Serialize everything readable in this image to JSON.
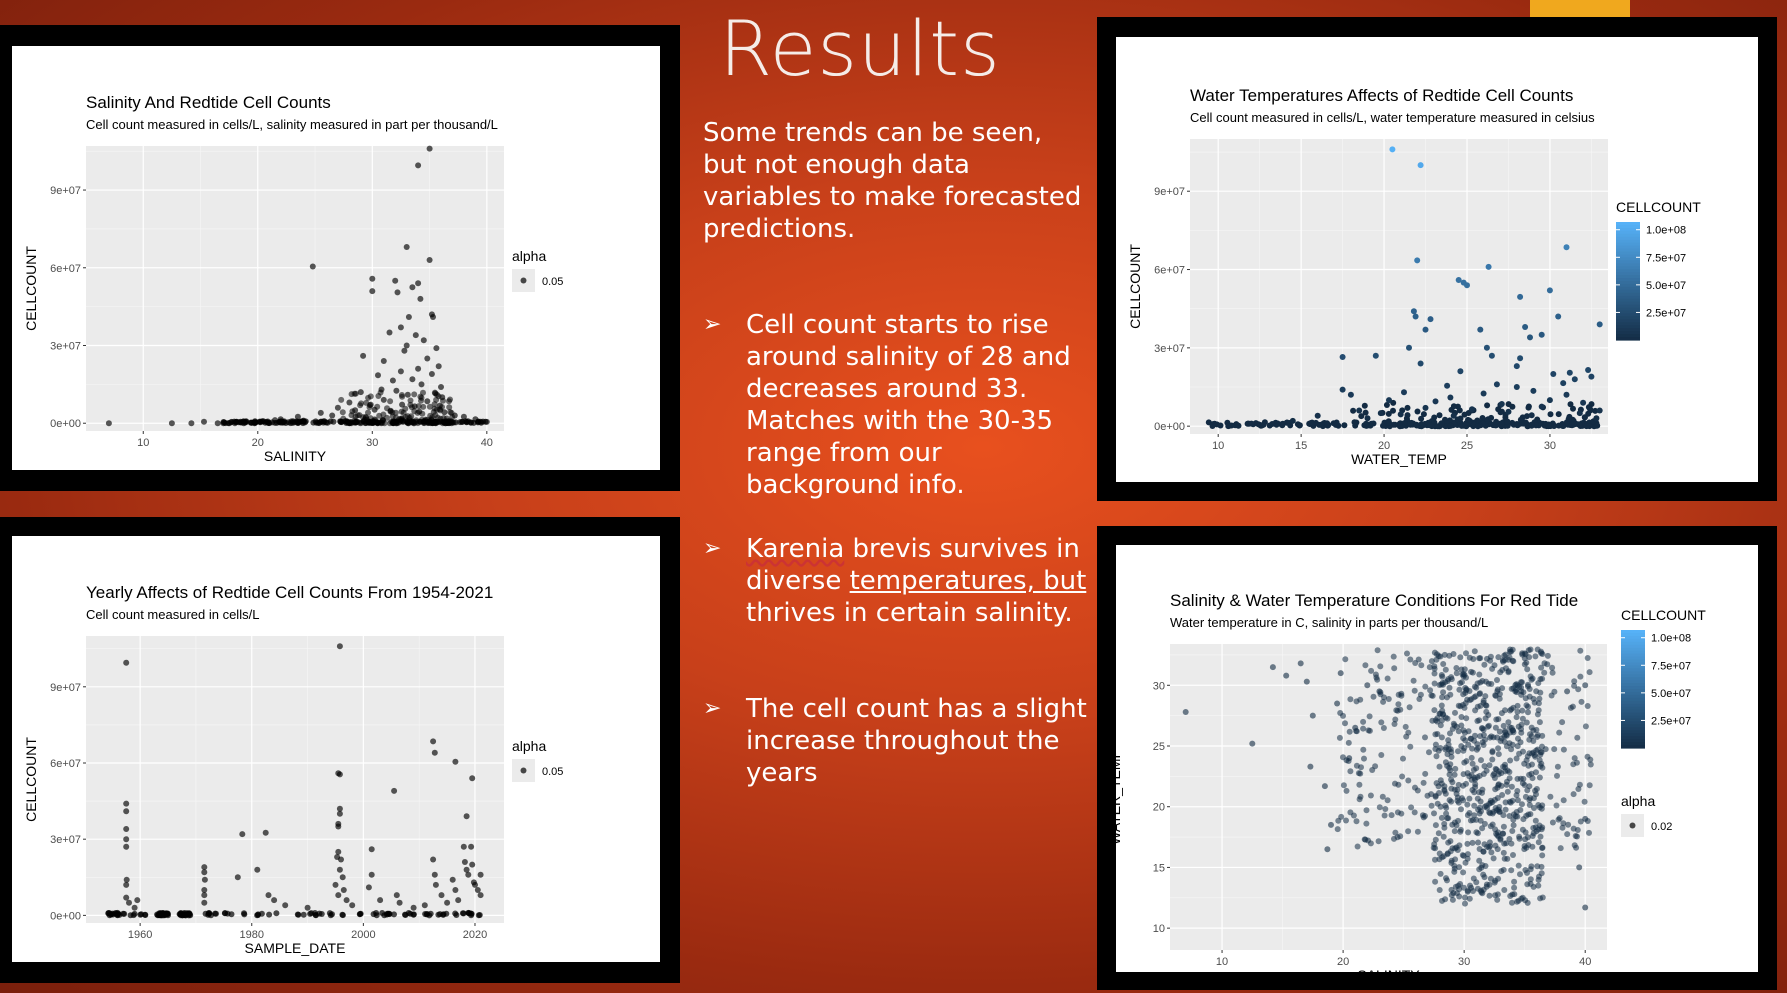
{
  "slide": {
    "title": "Results",
    "intro": "Some trends can be seen, but not enough data variables to make forecasted predictions.",
    "bullets": [
      {
        "icon": "arrow-bullet-icon",
        "glyph": "➢",
        "text": "Cell count starts to rise around salinity of 28 and decreases around 33. Matches with the 30-35 range from our background info."
      },
      {
        "icon": "arrow-bullet-icon",
        "glyph": "➢",
        "pre": " ",
        "w1": "Karenia",
        "mid": " brevis survives in diverse ",
        "w2": "temperatures, but",
        "post": " thrives in certain salinity."
      },
      {
        "icon": "arrow-bullet-icon",
        "glyph": "➢",
        "text": "The cell count has a slight increase throughout the years"
      }
    ],
    "colors": {
      "background": "#c8401a",
      "accent": "#f0a81e",
      "point_dark": "#132b43",
      "point_light": "#56b1f7",
      "panel_bg": "#ebebeb"
    }
  },
  "chart_data": [
    {
      "type": "scatter",
      "title": "Salinity And Redtide Cell Counts",
      "subtitle": "Cell count measured in cells/L, salinity measured in part per thousand/L",
      "xlabel": "SALINITY",
      "ylabel": "CELLCOUNT",
      "xlim": [
        5,
        41.5
      ],
      "ylim": [
        -3000000,
        107000000
      ],
      "xticks": [
        10,
        20,
        30,
        40
      ],
      "xtick_labels": [
        "10",
        "20",
        "30",
        "40"
      ],
      "yticks": [
        0,
        30000000,
        60000000,
        90000000
      ],
      "ytick_labels": [
        "0e+00",
        "3e+07",
        "6e+07",
        "9e+07"
      ],
      "legend": {
        "title": "alpha",
        "labels": [
          "0.05"
        ],
        "position": "right"
      },
      "grid": true,
      "points": [
        [
          7,
          0
        ],
        [
          12.5,
          0
        ],
        [
          14.2,
          0
        ],
        [
          15.3,
          600000
        ],
        [
          16.5,
          0
        ],
        [
          17,
          0
        ],
        [
          17.5,
          0
        ],
        [
          18,
          0
        ],
        [
          24.8,
          60500000
        ],
        [
          30,
          55800000
        ],
        [
          30,
          51000000
        ],
        [
          31.5,
          35000000
        ],
        [
          32,
          55000000
        ],
        [
          32.2,
          50500000
        ],
        [
          32.5,
          37000000
        ],
        [
          33,
          68000000
        ],
        [
          33.2,
          41000000
        ],
        [
          33.5,
          52500000
        ],
        [
          34,
          54000000
        ],
        [
          34,
          99500000
        ],
        [
          34.2,
          48000000
        ],
        [
          35,
          63000000
        ],
        [
          35,
          106000000
        ],
        [
          35.2,
          42000000
        ],
        [
          35.3,
          41000000
        ],
        [
          33.8,
          34000000
        ],
        [
          34.5,
          32000000
        ],
        [
          35.6,
          29000000
        ],
        [
          33,
          30000000
        ],
        [
          32.8,
          28000000
        ],
        [
          29.2,
          26000000
        ],
        [
          31,
          24000000
        ],
        [
          34.8,
          25000000
        ],
        [
          35.8,
          22000000
        ],
        [
          34,
          21000000
        ],
        [
          32.5,
          20000000
        ],
        [
          30.5,
          18500000
        ],
        [
          33.5,
          17000000
        ],
        [
          31.8,
          16500000
        ],
        [
          35.2,
          19000000
        ],
        [
          34.3,
          15000000
        ],
        [
          36,
          14000000
        ],
        [
          29,
          12000000
        ],
        [
          30.8,
          13000000
        ],
        [
          32.1,
          12500000
        ],
        [
          33.1,
          11000000
        ],
        [
          35.5,
          11500000
        ],
        [
          36.1,
          10000000
        ],
        [
          28,
          8000000
        ],
        [
          31,
          9000000
        ],
        [
          34.8,
          8500000
        ],
        [
          27,
          6000000
        ],
        [
          29.8,
          7000000
        ],
        [
          32.6,
          7200000
        ],
        [
          33.7,
          6500000
        ],
        [
          35.9,
          6800000
        ],
        [
          25.5,
          4000000
        ],
        [
          28.5,
          5000000
        ],
        [
          30.2,
          5200000
        ],
        [
          31.6,
          4800000
        ],
        [
          34.1,
          4500000
        ],
        [
          36.3,
          4200000
        ],
        [
          38,
          2500000
        ],
        [
          39,
          1500000
        ],
        [
          40,
          500000
        ],
        [
          22,
          1500000
        ],
        [
          23.5,
          2500000
        ],
        [
          26.5,
          3000000
        ],
        [
          24,
          1000000
        ],
        [
          20.5,
          800000
        ],
        [
          21.5,
          1200000
        ],
        [
          19,
          500000
        ],
        [
          18.5,
          600000
        ],
        [
          37.2,
          3000000
        ]
      ],
      "base_band": [
        [
          17,
          40
        ],
        [
          0,
          800000
        ]
      ],
      "dense_region": [
        [
          27,
          37
        ],
        [
          0,
          12000000
        ]
      ]
    },
    {
      "type": "scatter",
      "title": "Water Temperatures Affects of Redtide Cell Counts",
      "subtitle": "Cell count measured in cells/L, water temperature measured in celsius",
      "xlabel": "WATER_TEMP",
      "ylabel": "CELLCOUNT",
      "xlim": [
        8.3,
        33.5
      ],
      "ylim": [
        -3000000,
        110000000
      ],
      "xticks": [
        10,
        15,
        20,
        25,
        30
      ],
      "xtick_labels": [
        "10",
        "15",
        "20",
        "25",
        "30"
      ],
      "yticks": [
        0,
        30000000,
        60000000,
        90000000
      ],
      "ytick_labels": [
        "0e+00",
        "3e+07",
        "6e+07",
        "9e+07"
      ],
      "legend": {
        "title": "CELLCOUNT",
        "labels": [
          "1.0e+08",
          "7.5e+07",
          "5.0e+07",
          "2.5e+07"
        ],
        "ticks": [
          100000000,
          75000000,
          50000000,
          25000000
        ],
        "range": [
          0,
          107000000
        ],
        "position": "right"
      },
      "grid": true,
      "points": [
        [
          20.5,
          106000000
        ],
        [
          22.2,
          100000000
        ],
        [
          22,
          63500000
        ],
        [
          24.5,
          56000000
        ],
        [
          24.8,
          55000000
        ],
        [
          25,
          54000000
        ],
        [
          26.3,
          61000000
        ],
        [
          28.2,
          49500000
        ],
        [
          30,
          52000000
        ],
        [
          31,
          68500000
        ],
        [
          30.5,
          42000000
        ],
        [
          33,
          39000000
        ],
        [
          21.8,
          44000000
        ],
        [
          21.9,
          42000000
        ],
        [
          22.5,
          37000000
        ],
        [
          22.8,
          41000000
        ],
        [
          25.8,
          37000000
        ],
        [
          26.2,
          30000000
        ],
        [
          26.5,
          27000000
        ],
        [
          28.5,
          38000000
        ],
        [
          28.8,
          34000000
        ],
        [
          29.5,
          35000000
        ],
        [
          17.5,
          26500000
        ],
        [
          19.5,
          27000000
        ],
        [
          21.5,
          30000000
        ],
        [
          22.2,
          24000000
        ],
        [
          24.6,
          21000000
        ],
        [
          28,
          23000000
        ],
        [
          28.2,
          26000000
        ],
        [
          30.2,
          20000000
        ],
        [
          31.2,
          20500000
        ],
        [
          31.5,
          18000000
        ],
        [
          32.3,
          21500000
        ],
        [
          32.5,
          19000000
        ],
        [
          17.5,
          14000000
        ],
        [
          18,
          12000000
        ],
        [
          20.3,
          10000000
        ],
        [
          21.2,
          13000000
        ],
        [
          23.1,
          9500000
        ],
        [
          24,
          11000000
        ],
        [
          26,
          12500000
        ],
        [
          27.1,
          8500000
        ],
        [
          28,
          15000000
        ],
        [
          29,
          13500000
        ],
        [
          30,
          10000000
        ],
        [
          31,
          12000000
        ],
        [
          32,
          9000000
        ],
        [
          33,
          6000000
        ],
        [
          16,
          4000000
        ],
        [
          18.5,
          6000000
        ],
        [
          19.8,
          5000000
        ],
        [
          22.5,
          7000000
        ],
        [
          25.3,
          6500000
        ],
        [
          27.5,
          5500000
        ],
        [
          29.5,
          7500000
        ],
        [
          31.8,
          5000000
        ],
        [
          14.5,
          2000000
        ],
        [
          12,
          1000000
        ],
        [
          26.8,
          16000000
        ],
        [
          30.8,
          16500000
        ],
        [
          23.8,
          15500000
        ],
        [
          19,
          3000000
        ],
        [
          21,
          4500000
        ],
        [
          24.2,
          4000000
        ],
        [
          28.9,
          4200000
        ],
        [
          32.8,
          3000000
        ]
      ],
      "base_band": [
        [
          9.2,
          33
        ],
        [
          0,
          1500000
        ]
      ],
      "dense_region": [
        [
          18,
          33
        ],
        [
          0,
          9000000
        ]
      ]
    },
    {
      "type": "scatter",
      "title": "Yearly Affects of Redtide Cell Counts From 1954-2021",
      "subtitle": "Cell count measured in cells/L",
      "xlabel": "SAMPLE_DATE",
      "ylabel": "CELLCOUNT",
      "xlim": [
        1950.3,
        2025.2
      ],
      "ylim": [
        -3000000,
        110000000
      ],
      "xticks": [
        1960,
        1980,
        2000,
        2020
      ],
      "xtick_labels": [
        "1960",
        "1980",
        "2000",
        "2020"
      ],
      "yticks": [
        0,
        30000000,
        60000000,
        90000000
      ],
      "ytick_labels": [
        "0e+00",
        "3e+07",
        "6e+07",
        "9e+07"
      ],
      "legend": {
        "title": "alpha",
        "labels": [
          "0.05"
        ],
        "position": "right"
      },
      "grid": true,
      "points": [
        [
          1957.5,
          99500000
        ],
        [
          1957.5,
          44000000
        ],
        [
          1957.5,
          41000000
        ],
        [
          1957.5,
          34000000
        ],
        [
          1957.5,
          30000000
        ],
        [
          1957.5,
          27000000
        ],
        [
          1957.6,
          14000000
        ],
        [
          1957.5,
          12000000
        ],
        [
          1957.5,
          7000000
        ],
        [
          1958,
          5000000
        ],
        [
          1959.5,
          6000000
        ],
        [
          1959,
          3000000
        ],
        [
          1971.5,
          19000000
        ],
        [
          1971.5,
          17000000
        ],
        [
          1971.6,
          14000000
        ],
        [
          1971.5,
          10000000
        ],
        [
          1971.5,
          8000000
        ],
        [
          1971.5,
          5000000
        ],
        [
          1978.3,
          32000000
        ],
        [
          1977.5,
          15000000
        ],
        [
          1981,
          18000000
        ],
        [
          1982.5,
          32500000
        ],
        [
          1983,
          8000000
        ],
        [
          1984,
          6000000
        ],
        [
          1986,
          4000000
        ],
        [
          1990,
          3000000
        ],
        [
          1995.8,
          106000000
        ],
        [
          1995.5,
          56000000
        ],
        [
          1995.8,
          55500000
        ],
        [
          1995.8,
          42000000
        ],
        [
          1995.8,
          40000000
        ],
        [
          1995.5,
          36000000
        ],
        [
          1995.5,
          35000000
        ],
        [
          1995.5,
          25000000
        ],
        [
          1995.3,
          23000000
        ],
        [
          1996,
          22000000
        ],
        [
          1995.8,
          18000000
        ],
        [
          1996.3,
          15000000
        ],
        [
          1995,
          12000000
        ],
        [
          1996.5,
          10000000
        ],
        [
          1995.5,
          8000000
        ],
        [
          1997,
          6000000
        ],
        [
          1998,
          4000000
        ],
        [
          2001.5,
          26000000
        ],
        [
          2001.5,
          16000000
        ],
        [
          2001,
          11000000
        ],
        [
          2003,
          6000000
        ],
        [
          2005.5,
          49000000
        ],
        [
          2006,
          8000000
        ],
        [
          2006.5,
          5000000
        ],
        [
          2009,
          3000000
        ],
        [
          2012.5,
          68500000
        ],
        [
          2012.8,
          64000000
        ],
        [
          2012.5,
          22000000
        ],
        [
          2012.8,
          16000000
        ],
        [
          2013,
          12000000
        ],
        [
          2014,
          8000000
        ],
        [
          2016.5,
          60500000
        ],
        [
          2016,
          14000000
        ],
        [
          2016.5,
          10000000
        ],
        [
          2018.5,
          39000000
        ],
        [
          2018,
          27000000
        ],
        [
          2018.2,
          21000000
        ],
        [
          2018.5,
          18000000
        ],
        [
          2018.8,
          16000000
        ],
        [
          2019.5,
          54000000
        ],
        [
          2019.3,
          27000000
        ],
        [
          2019.5,
          20000000
        ],
        [
          2019.8,
          13000000
        ],
        [
          2020,
          12000000
        ],
        [
          2020.5,
          10000000
        ],
        [
          2021,
          16000000
        ],
        [
          2021,
          8000000
        ],
        [
          2017,
          6000000
        ],
        [
          2015,
          5000000
        ],
        [
          2011,
          4000000
        ]
      ],
      "date_clusters": [
        [
          1954,
          1962
        ],
        [
          1963,
          1965
        ],
        [
          1967,
          1969
        ],
        [
          1971,
          1993
        ],
        [
          1994,
          2010
        ],
        [
          2011,
          2021.5
        ]
      ],
      "base_band": [
        [
          1954,
          2021.5
        ],
        [
          0,
          1000000
        ]
      ]
    },
    {
      "type": "scatter",
      "title": "Salinity & Water Temperature Conditions For Red Tide",
      "subtitle": "Water temperature in C, salinity in parts per thousand/L",
      "xlabel": "SALINITY",
      "ylabel": "WATER_TEMP",
      "xlim": [
        5.7,
        41.8
      ],
      "ylim": [
        8.2,
        33.4
      ],
      "xticks": [
        10,
        20,
        30,
        40
      ],
      "xtick_labels": [
        "10",
        "20",
        "30",
        "40"
      ],
      "yticks": [
        10,
        15,
        20,
        25,
        30
      ],
      "ytick_labels": [
        "10",
        "15",
        "20",
        "25",
        "30"
      ],
      "legend": [
        {
          "title": "CELLCOUNT",
          "labels": [
            "1.0e+08",
            "7.5e+07",
            "5.0e+07",
            "2.5e+07"
          ],
          "ticks": [
            100000000,
            75000000,
            50000000,
            25000000
          ],
          "range": [
            0,
            107000000
          ]
        },
        {
          "title": "alpha",
          "labels": [
            "0.02"
          ]
        }
      ],
      "grid": true,
      "points": [
        [
          7,
          27.8
        ],
        [
          12.5,
          25.2
        ],
        [
          14.2,
          31.5
        ],
        [
          15.3,
          30.8
        ],
        [
          16.5,
          31.8
        ],
        [
          17,
          30.3
        ],
        [
          17.5,
          27.5
        ],
        [
          17.3,
          23.3
        ],
        [
          18.5,
          21.7
        ],
        [
          19,
          18.5
        ],
        [
          18.7,
          16.5
        ],
        [
          19.5,
          28.5
        ],
        [
          19.8,
          31
        ],
        [
          40,
          30
        ],
        [
          40,
          19
        ],
        [
          40,
          11.7
        ],
        [
          39.5,
          15
        ],
        [
          38.5,
          29.5
        ],
        [
          21,
          26.5
        ],
        [
          20.5,
          24
        ],
        [
          22,
          30
        ],
        [
          23,
          29.5
        ]
      ],
      "dense_region": {
        "x": [
          19.5,
          40.5
        ],
        "y": [
          9.5,
          33
        ],
        "core_x": [
          27.5,
          36.5
        ],
        "core_y": [
          12,
          33
        ]
      }
    }
  ]
}
